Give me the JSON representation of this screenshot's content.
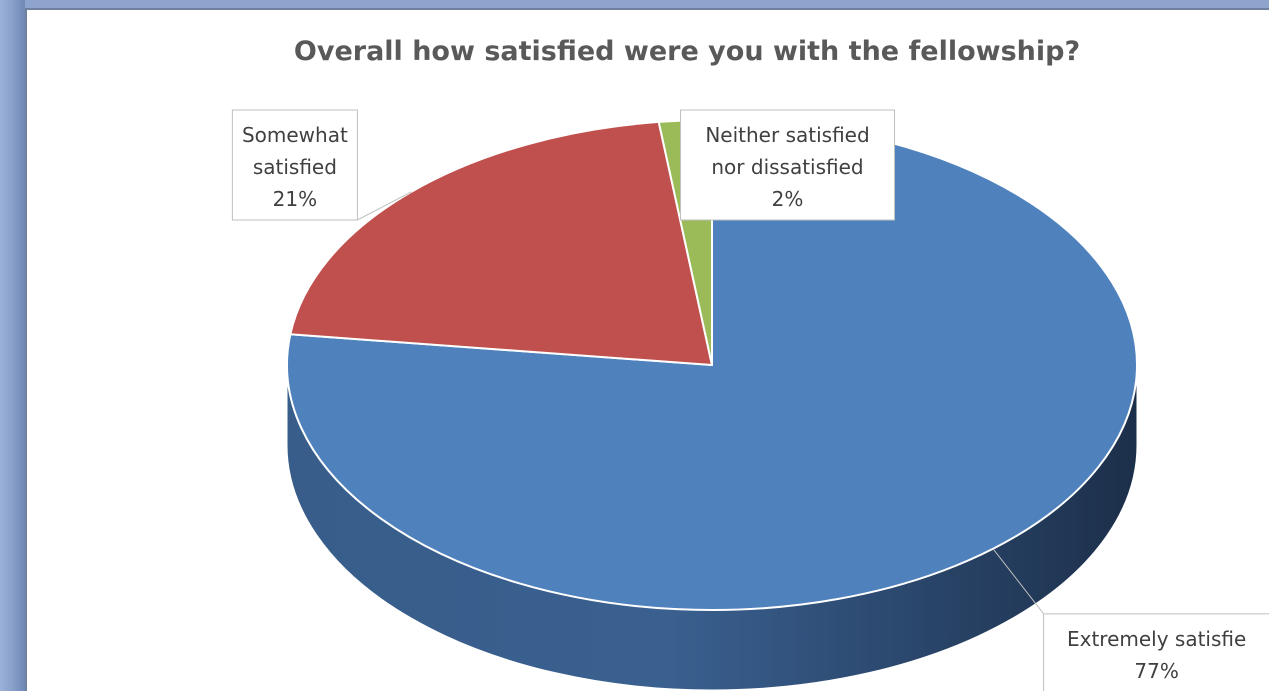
{
  "chart_data": {
    "type": "pie",
    "title": "Overall how satisfied were you with the fellowship?",
    "slices": [
      {
        "label_lines": [
          "Extremely satisfie",
          "77%"
        ],
        "value": 77,
        "color": "#4f81bd"
      },
      {
        "label_lines": [
          "Somewhat",
          "satisfied",
          "21%"
        ],
        "value": 21,
        "color": "#c0504d"
      },
      {
        "label_lines": [
          "Neither satisfied",
          "nor dissatisfied",
          "2%"
        ],
        "value": 2,
        "color": "#9bbb59"
      }
    ],
    "style": "3d"
  }
}
